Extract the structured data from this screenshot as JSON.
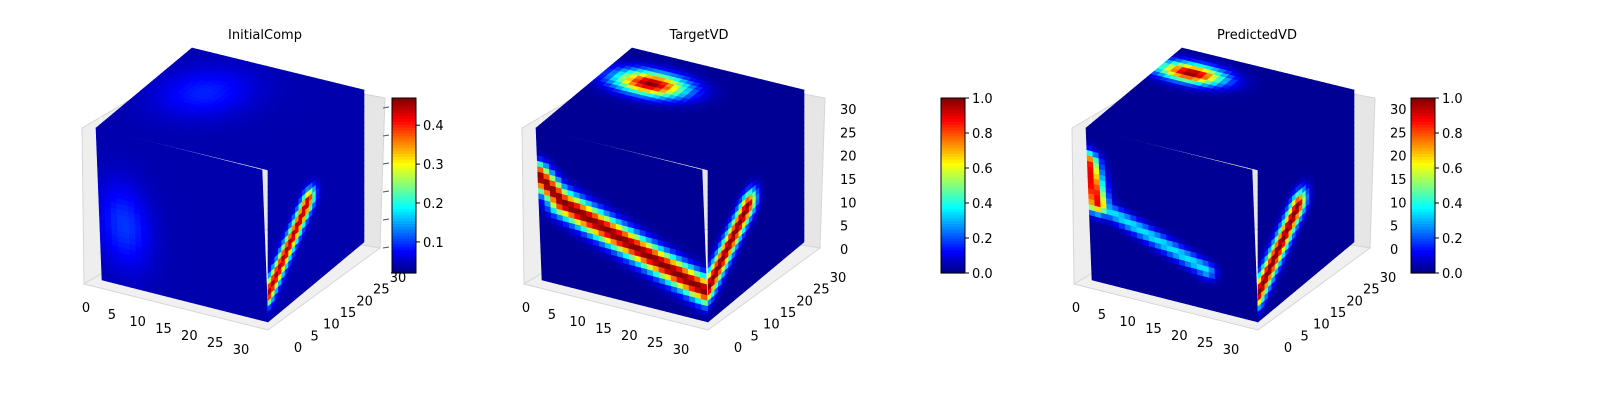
{
  "chart_data": [
    {
      "type": "heatmap",
      "subtype": "3d-voxel-cube",
      "title": "InitialComp",
      "x_ticks": [
        "0",
        "5",
        "10",
        "15",
        "20",
        "25",
        "30"
      ],
      "y_ticks": [
        "0",
        "5",
        "10",
        "15",
        "20",
        "25",
        "30"
      ],
      "z_ticks": [],
      "colormap": "jet",
      "colorbar": {
        "min": 0.02,
        "max": 0.47,
        "ticks": [
          "0.1",
          "0.2",
          "0.3",
          "0.4"
        ],
        "tick_values": [
          0.1,
          0.2,
          0.3,
          0.4
        ]
      },
      "features": [
        {
          "face": "front",
          "kind": "blob",
          "u": 0.15,
          "v": 0.4,
          "ru": 0.2,
          "rv": 0.35,
          "value": 0.1
        },
        {
          "face": "top",
          "kind": "blob",
          "u": 0.3,
          "v": 0.6,
          "ru": 0.3,
          "rv": 0.35,
          "value": 0.09
        },
        {
          "face": "side",
          "kind": "stripe",
          "u0": 0.0,
          "v0": 0.18,
          "u1": 0.42,
          "v1": 0.58,
          "width": 0.1,
          "value": 0.45
        }
      ],
      "base_value": 0.04
    },
    {
      "type": "heatmap",
      "subtype": "3d-voxel-cube",
      "title": "TargetVD",
      "x_ticks": [
        "0",
        "5",
        "10",
        "15",
        "20",
        "25",
        "30"
      ],
      "y_ticks": [
        "0",
        "5",
        "10",
        "15",
        "20",
        "25",
        "30"
      ],
      "z_ticks": [
        "0",
        "5",
        "10",
        "15",
        "20",
        "25",
        "30"
      ],
      "colormap": "jet",
      "colorbar": {
        "min": 0.0,
        "max": 1.0,
        "ticks": [
          "0.0",
          "0.2",
          "0.4",
          "0.6",
          "0.8",
          "1.0"
        ],
        "tick_values": [
          0.0,
          0.2,
          0.4,
          0.6,
          0.8,
          1.0
        ]
      },
      "features": [
        {
          "face": "front",
          "kind": "stripe",
          "u0": 0.0,
          "v0": 0.7,
          "u1": 0.15,
          "v1": 0.55,
          "width": 0.11,
          "value": 1.0
        },
        {
          "face": "front",
          "kind": "stripe",
          "u0": 0.15,
          "v0": 0.55,
          "u1": 1.0,
          "v1": 0.2,
          "width": 0.13,
          "value": 1.0
        },
        {
          "face": "side",
          "kind": "stripe",
          "u0": 0.0,
          "v0": 0.22,
          "u1": 0.42,
          "v1": 0.55,
          "width": 0.12,
          "value": 1.0
        },
        {
          "face": "top",
          "kind": "blob",
          "u": 0.28,
          "v": 0.7,
          "ru": 0.24,
          "rv": 0.15,
          "value": 1.0
        }
      ],
      "base_value": 0.02
    },
    {
      "type": "heatmap",
      "subtype": "3d-voxel-cube",
      "title": "PredictedVD",
      "x_ticks": [
        "0",
        "5",
        "10",
        "15",
        "20",
        "25",
        "30"
      ],
      "y_ticks": [
        "0",
        "5",
        "10",
        "15",
        "20",
        "25",
        "30"
      ],
      "z_ticks": [
        "0",
        "5",
        "10",
        "15",
        "20",
        "25",
        "30"
      ],
      "colormap": "jet",
      "colorbar": {
        "min": 0.0,
        "max": 1.0,
        "ticks": [
          "0.0",
          "0.2",
          "0.4",
          "0.6",
          "0.8",
          "1.0"
        ],
        "tick_values": [
          0.0,
          0.2,
          0.4,
          0.6,
          0.8,
          1.0
        ]
      },
      "features": [
        {
          "face": "front",
          "kind": "stripe",
          "u0": 0.0,
          "v0": 0.78,
          "u1": 0.05,
          "v1": 0.52,
          "width": 0.1,
          "value": 0.9
        },
        {
          "face": "front",
          "kind": "stripe",
          "u0": 0.05,
          "v0": 0.52,
          "u1": 0.7,
          "v1": 0.26,
          "width": 0.08,
          "value": 0.35
        },
        {
          "face": "side",
          "kind": "stripe",
          "u0": 0.0,
          "v0": 0.18,
          "u1": 0.42,
          "v1": 0.55,
          "width": 0.12,
          "value": 1.0
        },
        {
          "face": "top",
          "kind": "blob",
          "u": 0.18,
          "v": 0.78,
          "ru": 0.22,
          "rv": 0.12,
          "value": 1.0
        }
      ],
      "base_value": 0.02
    }
  ]
}
